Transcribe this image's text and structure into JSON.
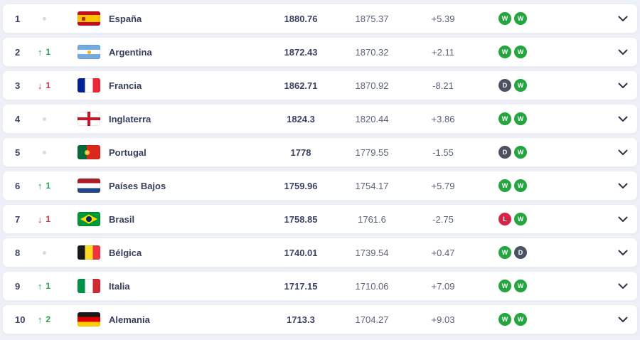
{
  "icons": {
    "up": "↑",
    "down": "↓",
    "no_change": "dot",
    "expand": "chevron-down",
    "win_badge": "W",
    "draw_badge": "D",
    "loss_badge": "L"
  },
  "colors": {
    "background": "#eef0f7",
    "row_background": "#ffffff",
    "rank_up": "#1ca44c",
    "rank_down": "#cf2b47",
    "win": "#23a53f",
    "draw": "#4b5363",
    "loss": "#d6234a",
    "text_primary": "#3a4364",
    "text_secondary": "#5b6278"
  },
  "rows": [
    {
      "rank": "1",
      "movement": {
        "dir": "none",
        "value": ""
      },
      "flag": "es",
      "name": "España",
      "points": "1880.76",
      "prev_points": "1875.37",
      "change": "+5.39",
      "form": [
        "W",
        "W"
      ]
    },
    {
      "rank": "2",
      "movement": {
        "dir": "up",
        "value": "1"
      },
      "flag": "ar",
      "name": "Argentina",
      "points": "1872.43",
      "prev_points": "1870.32",
      "change": "+2.11",
      "form": [
        "W",
        "W"
      ]
    },
    {
      "rank": "3",
      "movement": {
        "dir": "down",
        "value": "1"
      },
      "flag": "fr",
      "name": "Francia",
      "points": "1862.71",
      "prev_points": "1870.92",
      "change": "-8.21",
      "form": [
        "D",
        "W"
      ]
    },
    {
      "rank": "4",
      "movement": {
        "dir": "none",
        "value": ""
      },
      "flag": "gb-eng",
      "name": "Inglaterra",
      "points": "1824.3",
      "prev_points": "1820.44",
      "change": "+3.86",
      "form": [
        "W",
        "W"
      ]
    },
    {
      "rank": "5",
      "movement": {
        "dir": "none",
        "value": ""
      },
      "flag": "pt",
      "name": "Portugal",
      "points": "1778",
      "prev_points": "1779.55",
      "change": "-1.55",
      "form": [
        "D",
        "W"
      ]
    },
    {
      "rank": "6",
      "movement": {
        "dir": "up",
        "value": "1"
      },
      "flag": "nl",
      "name": "Países Bajos",
      "points": "1759.96",
      "prev_points": "1754.17",
      "change": "+5.79",
      "form": [
        "W",
        "W"
      ]
    },
    {
      "rank": "7",
      "movement": {
        "dir": "down",
        "value": "1"
      },
      "flag": "br",
      "name": "Brasil",
      "points": "1758.85",
      "prev_points": "1761.6",
      "change": "-2.75",
      "form": [
        "L",
        "W"
      ]
    },
    {
      "rank": "8",
      "movement": {
        "dir": "none",
        "value": ""
      },
      "flag": "be",
      "name": "Bélgica",
      "points": "1740.01",
      "prev_points": "1739.54",
      "change": "+0.47",
      "form": [
        "W",
        "D"
      ]
    },
    {
      "rank": "9",
      "movement": {
        "dir": "up",
        "value": "1"
      },
      "flag": "it",
      "name": "Italia",
      "points": "1717.15",
      "prev_points": "1710.06",
      "change": "+7.09",
      "form": [
        "W",
        "W"
      ]
    },
    {
      "rank": "10",
      "movement": {
        "dir": "up",
        "value": "2"
      },
      "flag": "de",
      "name": "Alemania",
      "points": "1713.3",
      "prev_points": "1704.27",
      "change": "+9.03",
      "form": [
        "W",
        "W"
      ]
    }
  ]
}
